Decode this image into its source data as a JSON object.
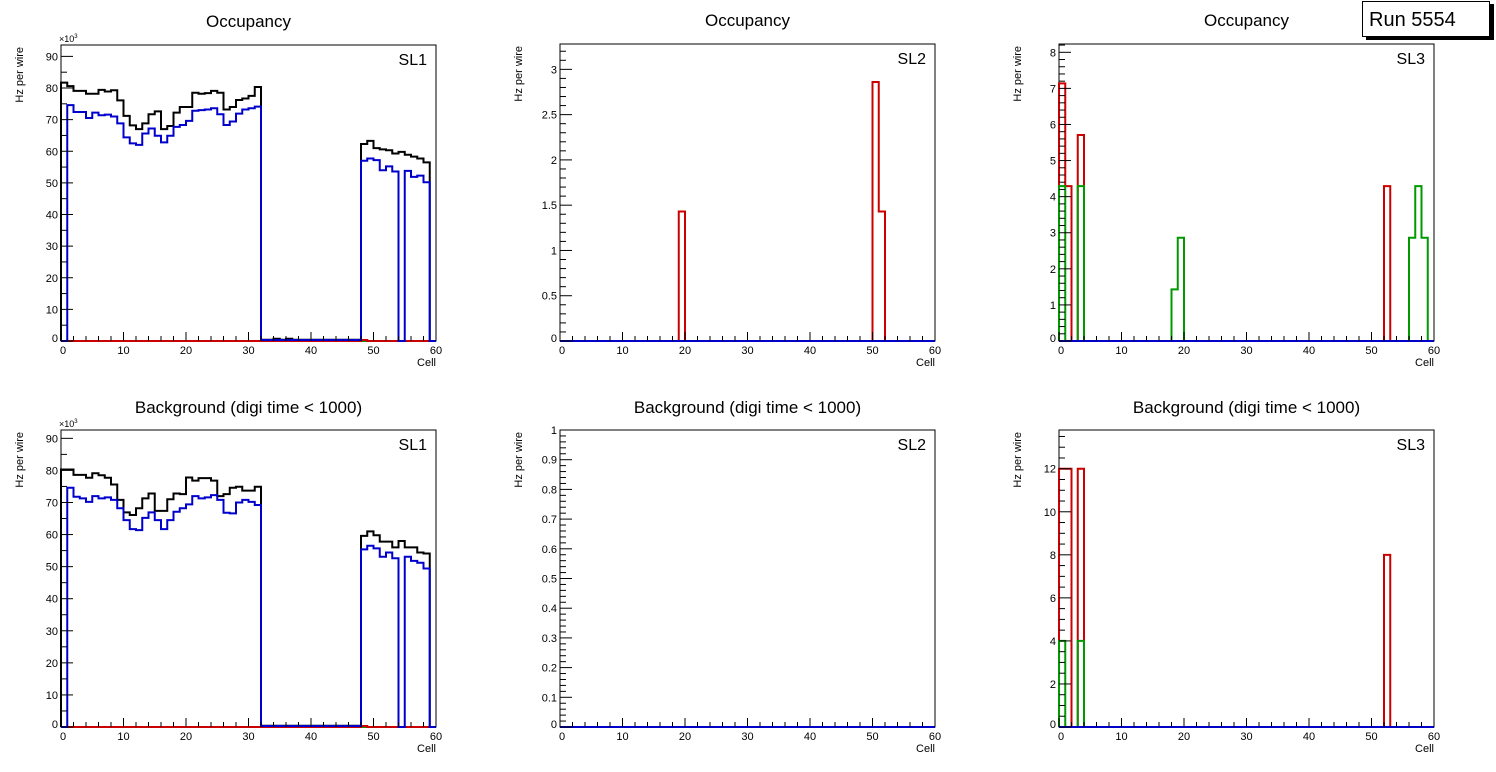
{
  "run_label": "Run 5554",
  "colors": {
    "black": "#000000",
    "blue": "#0000cc",
    "red": "#cc0000",
    "green": "#009900"
  },
  "chart_data": [
    {
      "type": "histogram",
      "id": "occ-sl1",
      "title": "Occupancy",
      "label": "SL1",
      "xlabel": "Cell",
      "ylabel": "Hz per wire",
      "ymultiplier": "×10^3",
      "xlim": [
        0,
        60
      ],
      "ylim": [
        0,
        93.6
      ],
      "xticks": [
        0,
        10,
        20,
        30,
        40,
        50,
        60
      ],
      "yticks": [
        0,
        10,
        20,
        30,
        40,
        50,
        60,
        70,
        80,
        90
      ],
      "yminor": 2,
      "series": [
        {
          "name": "green",
          "color": "green",
          "values": {}
        },
        {
          "name": "red",
          "color": "red",
          "values": {
            "48": 0.3
          }
        },
        {
          "name": "black",
          "color": "black",
          "values": {
            "0": 81.7,
            "1": 80.6,
            "2": 79.1,
            "3": 79.1,
            "4": 78.2,
            "5": 78.2,
            "6": 79.4,
            "7": 78.9,
            "8": 79.3,
            "9": 76.1,
            "10": 71.2,
            "11": 68.2,
            "12": 67.0,
            "13": 68.8,
            "14": 71.7,
            "15": 72.6,
            "16": 67.0,
            "17": 68.0,
            "18": 72.2,
            "19": 74.0,
            "20": 74.0,
            "21": 78.5,
            "22": 78.2,
            "23": 78.4,
            "24": 79.1,
            "25": 78.5,
            "26": 73.2,
            "27": 74.0,
            "28": 76.2,
            "29": 76.7,
            "30": 77.5,
            "31": 80.3,
            "32": 0.4,
            "33": 0.4,
            "34": 0.7,
            "35": 0.4,
            "36": 0.7,
            "37": 0.4,
            "38": 0.4,
            "39": 0.4,
            "40": 0.4,
            "41": 0.4,
            "42": 0.4,
            "43": 0.4,
            "44": 0.4,
            "45": 0.4,
            "46": 0.4,
            "47": 0.4,
            "48": 62.3,
            "49": 63.3,
            "50": 61.0,
            "51": 60.6,
            "52": 60.3,
            "53": 59.3,
            "54": 59.8,
            "55": 58.9,
            "56": 58.3,
            "57": 57.7,
            "58": 56.5
          }
        },
        {
          "name": "blue",
          "color": "blue",
          "values": {
            "1": 74.6,
            "2": 72.4,
            "3": 72.4,
            "4": 70.5,
            "5": 72.2,
            "6": 71.4,
            "7": 71.6,
            "8": 71.0,
            "9": 68.8,
            "10": 64.4,
            "11": 62.5,
            "12": 62.0,
            "13": 65.6,
            "14": 67.2,
            "15": 64.9,
            "16": 62.8,
            "17": 64.9,
            "18": 67.7,
            "19": 68.3,
            "20": 69.6,
            "21": 72.8,
            "22": 73.0,
            "23": 73.2,
            "24": 73.6,
            "25": 71.7,
            "26": 68.3,
            "27": 69.4,
            "28": 71.9,
            "29": 73.2,
            "30": 73.6,
            "31": 74.1,
            "32": 0.3,
            "33": 0.3,
            "34": 0.3,
            "35": 0.3,
            "36": 0.3,
            "37": 0.3,
            "38": 0.3,
            "39": 0.3,
            "40": 0.3,
            "41": 0.3,
            "42": 0.3,
            "43": 0.3,
            "44": 0.3,
            "45": 0.3,
            "46": 0.3,
            "47": 0.3,
            "48": 57.0,
            "49": 57.7,
            "50": 57.2,
            "51": 54.0,
            "52": 55.2,
            "53": 53.6,
            "55": 53.8,
            "56": 51.9,
            "57": 52.3,
            "58": 50.2
          }
        }
      ]
    },
    {
      "type": "histogram",
      "id": "occ-sl2",
      "title": "Occupancy",
      "label": "SL2",
      "xlabel": "Cell",
      "ylabel": "Hz per wire",
      "xlim": [
        0,
        60
      ],
      "ylim": [
        0,
        3.28
      ],
      "xticks": [
        0,
        10,
        20,
        30,
        40,
        50,
        60
      ],
      "yticks": [
        0,
        0.5,
        1,
        1.5,
        2,
        2.5,
        3
      ],
      "yticklabels": [
        "0",
        "0.5",
        "1",
        "1.5",
        "2",
        "2.5",
        "3"
      ],
      "yminor": 5,
      "series": [
        {
          "name": "red",
          "color": "red",
          "values": {
            "19": 1.43,
            "50": 2.86,
            "51": 1.43
          }
        },
        {
          "name": "blue",
          "color": "blue",
          "values": {}
        }
      ]
    },
    {
      "type": "histogram",
      "id": "occ-sl3",
      "title": "Occupancy",
      "label": "SL3",
      "xlabel": "Cell",
      "ylabel": "Hz per wire",
      "xlim": [
        0,
        60
      ],
      "ylim": [
        0,
        8.23
      ],
      "xticks": [
        0,
        10,
        20,
        30,
        40,
        50,
        60
      ],
      "yticks": [
        0,
        1,
        2,
        3,
        4,
        5,
        6,
        7,
        8
      ],
      "yminor": 5,
      "series": [
        {
          "name": "red",
          "color": "red",
          "values": {
            "0": 7.14,
            "1": 4.29,
            "3": 5.71,
            "52": 4.29
          }
        },
        {
          "name": "green",
          "color": "green",
          "values": {
            "0": 4.29,
            "3": 4.29,
            "18": 1.43,
            "19": 2.86,
            "56": 2.86,
            "57": 4.29,
            "58": 2.86
          }
        },
        {
          "name": "blue",
          "color": "blue",
          "values": {}
        }
      ]
    },
    {
      "type": "histogram",
      "id": "bkg-sl1",
      "title": "Background (digi time < 1000)",
      "label": "SL1",
      "xlabel": "Cell",
      "ylabel": "Hz per wire",
      "ymultiplier": "×10^3",
      "xlim": [
        0,
        60
      ],
      "ylim": [
        0,
        92.6
      ],
      "xticks": [
        0,
        10,
        20,
        30,
        40,
        50,
        60
      ],
      "yticks": [
        0,
        10,
        20,
        30,
        40,
        50,
        60,
        70,
        80,
        90
      ],
      "yminor": 2,
      "series": [
        {
          "name": "green",
          "color": "green",
          "values": {}
        },
        {
          "name": "red",
          "color": "red",
          "values": {
            "48": 0.3
          }
        },
        {
          "name": "black",
          "color": "black",
          "values": {
            "0": 80.3,
            "1": 80.3,
            "2": 78.6,
            "3": 78.6,
            "4": 77.7,
            "5": 79.1,
            "6": 78.5,
            "7": 77.7,
            "8": 75.6,
            "9": 70.8,
            "10": 66.9,
            "11": 66.1,
            "12": 68.2,
            "13": 71.3,
            "14": 72.8,
            "15": 67.4,
            "16": 67.4,
            "17": 71.0,
            "18": 72.8,
            "19": 72.6,
            "20": 77.8,
            "21": 76.8,
            "22": 77.6,
            "23": 77.6,
            "24": 76.8,
            "25": 72.0,
            "26": 72.6,
            "27": 74.6,
            "28": 74.9,
            "29": 73.7,
            "30": 73.7,
            "31": 74.9,
            "32": 0.4,
            "33": 0.4,
            "34": 0.4,
            "35": 0.4,
            "36": 0.4,
            "37": 0.4,
            "38": 0.4,
            "39": 0.4,
            "40": 0.4,
            "41": 0.4,
            "42": 0.4,
            "43": 0.4,
            "44": 0.4,
            "45": 0.4,
            "46": 0.4,
            "47": 0.4,
            "48": 59.6,
            "49": 61.0,
            "50": 59.8,
            "51": 57.8,
            "52": 57.8,
            "53": 56.0,
            "54": 58.0,
            "55": 56.0,
            "56": 56.0,
            "57": 54.4,
            "58": 54.1
          }
        },
        {
          "name": "blue",
          "color": "blue",
          "values": {
            "1": 74.6,
            "2": 71.8,
            "3": 71.3,
            "4": 70.2,
            "5": 72.0,
            "6": 71.3,
            "7": 71.6,
            "8": 70.8,
            "9": 68.2,
            "10": 64.5,
            "11": 61.7,
            "12": 61.4,
            "13": 65.2,
            "14": 66.9,
            "15": 64.5,
            "16": 61.7,
            "17": 64.5,
            "18": 67.1,
            "19": 68.2,
            "20": 69.4,
            "21": 72.0,
            "22": 71.3,
            "23": 71.6,
            "24": 72.3,
            "25": 70.8,
            "26": 66.8,
            "27": 66.6,
            "28": 70.0,
            "29": 70.8,
            "30": 70.2,
            "31": 69.2,
            "32": 0.3,
            "33": 0.3,
            "34": 0.3,
            "35": 0.3,
            "36": 0.3,
            "37": 0.3,
            "38": 0.3,
            "39": 0.3,
            "40": 0.3,
            "41": 0.3,
            "42": 0.3,
            "43": 0.3,
            "44": 0.3,
            "45": 0.3,
            "46": 0.3,
            "47": 0.3,
            "48": 55.4,
            "49": 56.5,
            "50": 55.7,
            "51": 53.1,
            "52": 54.4,
            "53": 52.6,
            "55": 53.1,
            "56": 51.8,
            "57": 51.2,
            "58": 49.4
          }
        }
      ]
    },
    {
      "type": "histogram",
      "id": "bkg-sl2",
      "title": "Background (digi time < 1000)",
      "label": "SL2",
      "xlabel": "Cell",
      "ylabel": "Hz per wire",
      "xlim": [
        0,
        60
      ],
      "ylim": [
        0,
        1
      ],
      "xticks": [
        0,
        10,
        20,
        30,
        40,
        50,
        60
      ],
      "yticks": [
        0,
        0.1,
        0.2,
        0.3,
        0.4,
        0.5,
        0.6,
        0.7,
        0.8,
        0.9,
        1
      ],
      "yticklabels": [
        "0",
        "0.1",
        "0.2",
        "0.3",
        "0.4",
        "0.5",
        "0.6",
        "0.7",
        "0.8",
        "0.9",
        "1"
      ],
      "yminor": 5,
      "series": [
        {
          "name": "blue",
          "color": "blue",
          "values": {}
        }
      ]
    },
    {
      "type": "histogram",
      "id": "bkg-sl3",
      "title": "Background (digi time < 1000)",
      "label": "SL3",
      "xlabel": "Cell",
      "ylabel": "Hz per wire",
      "xlim": [
        0,
        60
      ],
      "ylim": [
        0,
        13.8
      ],
      "xticks": [
        0,
        10,
        20,
        30,
        40,
        50,
        60
      ],
      "yticks": [
        0,
        2,
        4,
        6,
        8,
        10,
        12
      ],
      "yminor": 4,
      "series": [
        {
          "name": "red",
          "color": "red",
          "values": {
            "0": 12,
            "1": 12,
            "3": 12,
            "52": 8
          }
        },
        {
          "name": "green",
          "color": "green",
          "values": {
            "0": 4,
            "3": 4
          }
        },
        {
          "name": "blue",
          "color": "blue",
          "values": {}
        }
      ]
    }
  ]
}
